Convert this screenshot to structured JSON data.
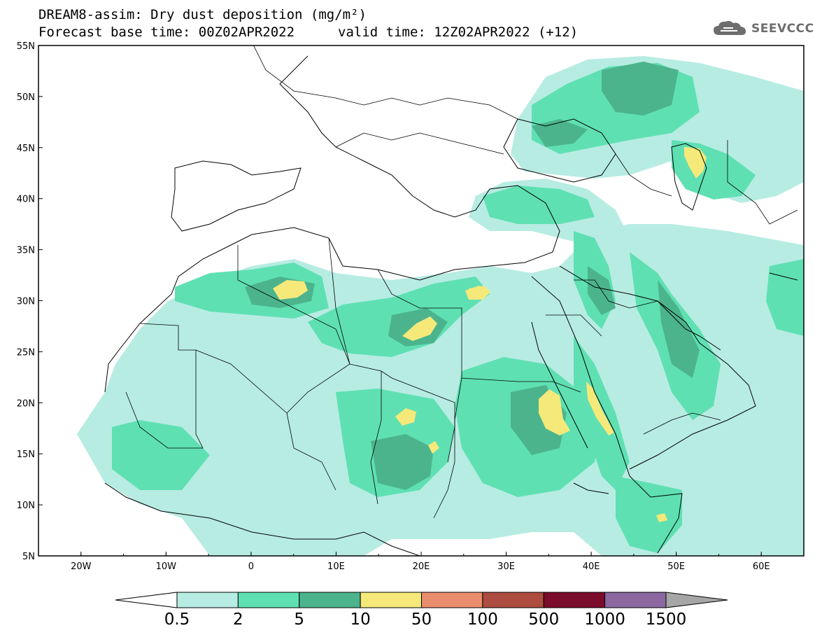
{
  "header": {
    "title": "DREAM8-assim: Dry dust deposition (mg/m²)",
    "base_time": "Forecast base time: 00Z02APR2022",
    "valid_time": "valid time: 12Z02APR2022 (+12)",
    "logo_text": "SEEVCCC"
  },
  "map": {
    "lon_range": [
      -25,
      65
    ],
    "lat_range": [
      5,
      55
    ],
    "lon_ticks": [
      {
        "value": -20,
        "label": "20W"
      },
      {
        "value": -10,
        "label": "10W"
      },
      {
        "value": 0,
        "label": "0"
      },
      {
        "value": 10,
        "label": "10E"
      },
      {
        "value": 20,
        "label": "20E"
      },
      {
        "value": 30,
        "label": "30E"
      },
      {
        "value": 40,
        "label": "40E"
      },
      {
        "value": 50,
        "label": "50E"
      },
      {
        "value": 60,
        "label": "60E"
      }
    ],
    "lat_ticks": [
      {
        "value": 55,
        "label": "55N"
      },
      {
        "value": 50,
        "label": "50N"
      },
      {
        "value": 45,
        "label": "45N"
      },
      {
        "value": 40,
        "label": "40N"
      },
      {
        "value": 35,
        "label": "35N"
      },
      {
        "value": 30,
        "label": "30N"
      },
      {
        "value": 25,
        "label": "25N"
      },
      {
        "value": 20,
        "label": "20N"
      },
      {
        "value": 15,
        "label": "15N"
      },
      {
        "value": 10,
        "label": "10N"
      },
      {
        "value": 5,
        "label": "5N"
      }
    ]
  },
  "colorbar": {
    "colors": [
      "#ffffff",
      "#b7ece2",
      "#5fe0b3",
      "#4cb48d",
      "#f5e97a",
      "#e98e6c",
      "#ad4d3f",
      "#7c0c2c",
      "#8b69a0",
      "#a6a6a6"
    ],
    "labels": [
      "0.5",
      "2",
      "5",
      "10",
      "50",
      "100",
      "500",
      "1000",
      "1500"
    ]
  },
  "colors": {
    "coast": "#000000",
    "frame": "#000000"
  }
}
